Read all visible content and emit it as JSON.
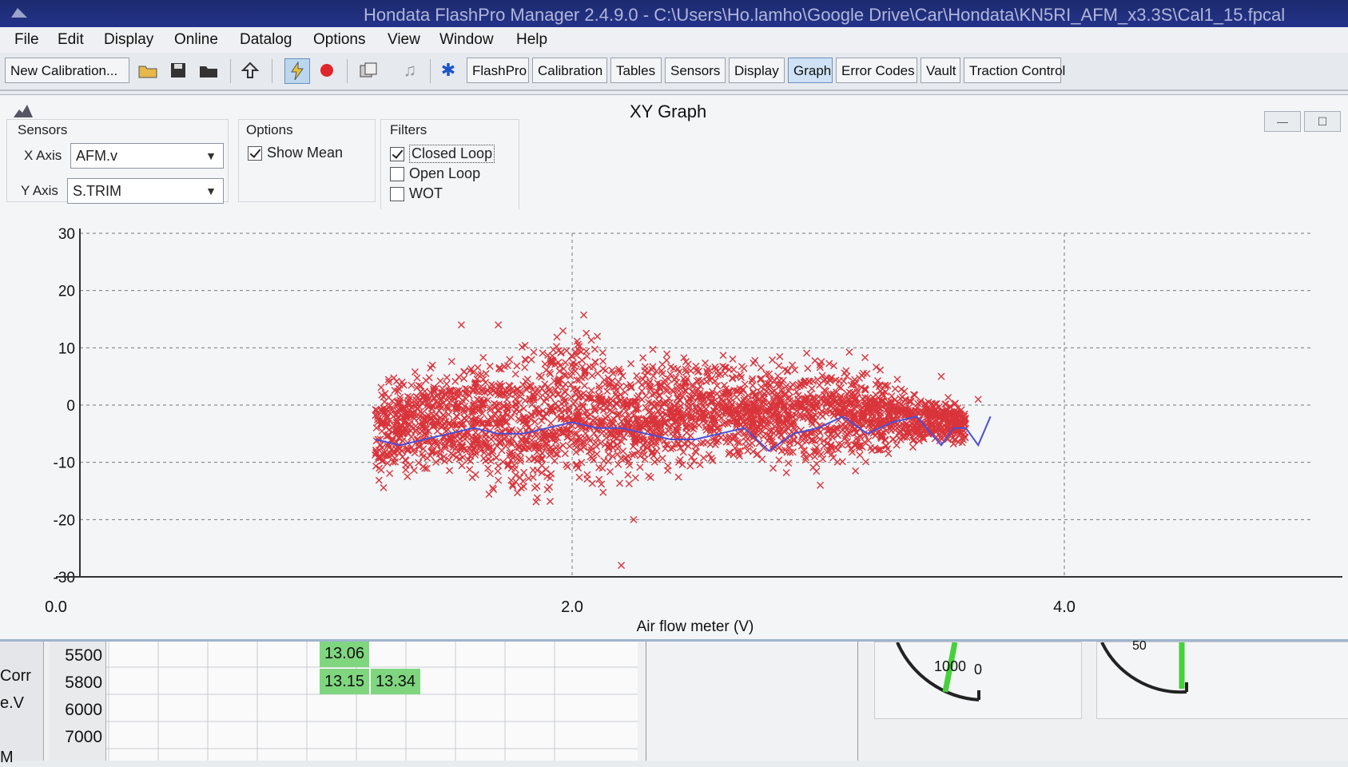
{
  "window": {
    "title": "Hondata FlashPro Manager 2.4.9.0 - C:\\Users\\Ho.lamho\\Google Drive\\Car\\Hondata\\KN5RI_AFM_x3.3S\\Cal1_15.fpcal"
  },
  "menu": [
    "File",
    "Edit",
    "Display",
    "Online",
    "Datalog",
    "Options",
    "View",
    "Window",
    "Help"
  ],
  "toolbar": {
    "new_calibration": "New Calibration...",
    "tabs": [
      "FlashPro",
      "Calibration",
      "Tables",
      "Sensors",
      "Display",
      "Graph",
      "Error Codes",
      "Vault",
      "Traction Control"
    ],
    "active_tab": "Graph"
  },
  "xy_graph": {
    "title": "XY Graph",
    "sensors": {
      "label": "Sensors",
      "x_axis_label": "X Axis",
      "x_axis_value": "AFM.v",
      "y_axis_label": "Y Axis",
      "y_axis_value": "S.TRIM"
    },
    "options": {
      "label": "Options",
      "show_mean": "Show Mean",
      "show_mean_checked": true
    },
    "filters": {
      "label": "Filters",
      "items": [
        {
          "label": "Closed Loop",
          "checked": true
        },
        {
          "label": "Open Loop",
          "checked": false
        },
        {
          "label": "WOT",
          "checked": false
        }
      ]
    }
  },
  "chart_data": {
    "type": "scatter",
    "xlabel": "Air flow meter (V)",
    "ylabel": "",
    "xlim": [
      0.0,
      5.0
    ],
    "ylim": [
      -30,
      30
    ],
    "x_ticks": [
      "0.0",
      "2.0",
      "4.0"
    ],
    "y_ticks": [
      "30",
      "20",
      "10",
      "0",
      "-10",
      "-20",
      "-30"
    ],
    "grid": true,
    "point_color": "#d9343b",
    "mean_color": "#4b4fd6",
    "scatter_density": [
      {
        "x": 1.2,
        "y_min": -16,
        "y_max": 7
      },
      {
        "x": 1.4,
        "y_min": -13,
        "y_max": 9
      },
      {
        "x": 1.6,
        "y_min": -17,
        "y_max": 12
      },
      {
        "x": 1.8,
        "y_min": -20,
        "y_max": 12
      },
      {
        "x": 2.0,
        "y_min": -19,
        "y_max": 20
      },
      {
        "x": 2.2,
        "y_min": -17,
        "y_max": 12
      },
      {
        "x": 2.4,
        "y_min": -14,
        "y_max": 11
      },
      {
        "x": 2.6,
        "y_min": -14,
        "y_max": 11
      },
      {
        "x": 2.8,
        "y_min": -12,
        "y_max": 10
      },
      {
        "x": 3.0,
        "y_min": -15,
        "y_max": 13
      },
      {
        "x": 3.2,
        "y_min": -12,
        "y_max": 9
      },
      {
        "x": 3.4,
        "y_min": -8,
        "y_max": 3
      },
      {
        "x": 3.6,
        "y_min": -8,
        "y_max": 2
      }
    ],
    "outliers": [
      [
        2.2,
        -28
      ],
      [
        2.25,
        -20
      ],
      [
        1.55,
        14
      ],
      [
        1.7,
        14
      ],
      [
        3.5,
        5
      ],
      [
        3.65,
        1
      ]
    ],
    "mean_line": {
      "x": [
        1.2,
        1.3,
        1.4,
        1.5,
        1.6,
        1.7,
        1.8,
        1.9,
        2.0,
        2.1,
        2.2,
        2.3,
        2.4,
        2.5,
        2.6,
        2.7,
        2.8,
        2.9,
        3.0,
        3.1,
        3.2,
        3.3,
        3.4,
        3.5,
        3.55,
        3.6,
        3.65,
        3.7
      ],
      "y": [
        -6,
        -7,
        -6,
        -5,
        -4,
        -5,
        -5,
        -4,
        -3,
        -4,
        -4,
        -5,
        -6,
        -6,
        -5,
        -4,
        -8,
        -5,
        -4,
        -2,
        -5,
        -3,
        -2,
        -7,
        -4,
        -4,
        -7,
        -2
      ]
    }
  },
  "bottom": {
    "side_labels": [
      "Corr",
      "e.V",
      "",
      "M"
    ],
    "rpm_rows": [
      "5500",
      "5800",
      "6000",
      "7000"
    ],
    "cells": [
      {
        "row": 0,
        "values": [
          "13.06"
        ]
      },
      {
        "row": 1,
        "values": [
          "13.15",
          "13.34"
        ]
      }
    ],
    "gauge1": {
      "readout": "1000",
      "zero": "0"
    },
    "gauge2": {
      "readout": "50"
    }
  }
}
